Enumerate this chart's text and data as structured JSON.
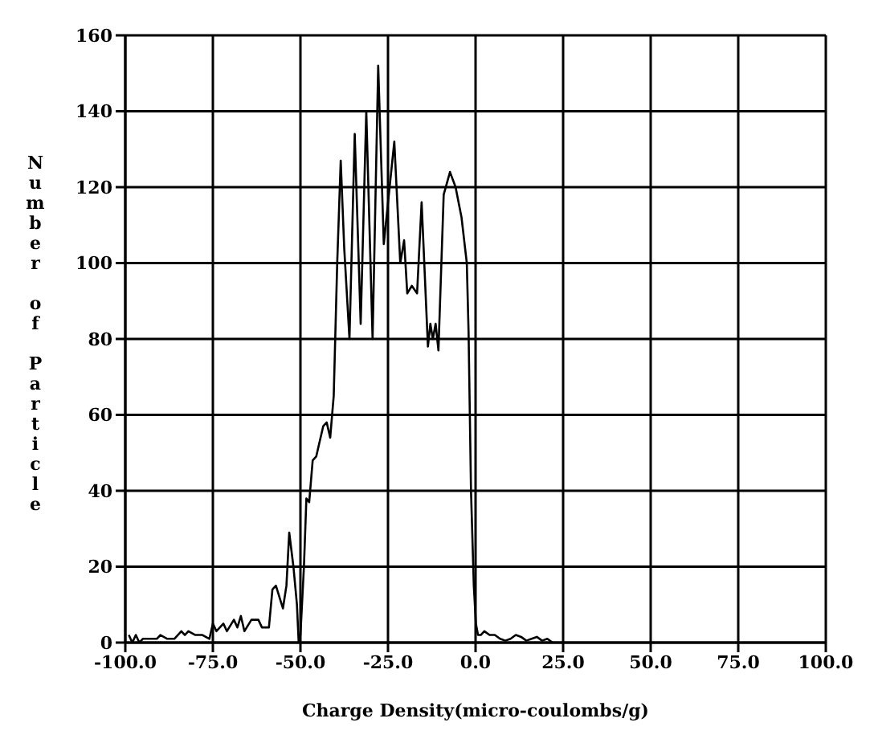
{
  "chart_data": {
    "type": "line",
    "xlabel": "Charge Density(micro-coulombs/g)",
    "ylabel": "Number of Particle",
    "x": [
      -99,
      -98,
      -97,
      -96,
      -95,
      -93,
      -91,
      -90,
      -88,
      -86,
      -84,
      -83,
      -82,
      -80,
      -78,
      -76,
      -75,
      -74,
      -72,
      -71,
      -69,
      -68,
      -67,
      -66,
      -64,
      -62,
      -61,
      -59,
      -58,
      -57,
      -56,
      -55,
      -54,
      -53.2,
      -52,
      -51,
      -50.5,
      -50,
      -49,
      -48.3,
      -47.5,
      -46.5,
      -45.5,
      -44.5,
      -43.5,
      -42.5,
      -41.5,
      -40.5,
      -39.5,
      -38.5,
      -37.5,
      -36,
      -34.5,
      -32.8,
      -31.2,
      -29.4,
      -27.8,
      -26.2,
      -25.1,
      -23.2,
      -21.5,
      -20.4,
      -19.5,
      -18.2,
      -16.7,
      -15.4,
      -13.6,
      -12.9,
      -12.2,
      -11.4,
      -10.6,
      -9.1,
      -7.3,
      -5.7,
      -4,
      -2.5,
      -2,
      -1.3,
      -0.5,
      0.1,
      0.7,
      1.5,
      2.5,
      4,
      5.5,
      7,
      8.5,
      10,
      11.5,
      13,
      14.5,
      16,
      17.5,
      19,
      20.5,
      22
    ],
    "series": [
      {
        "color": "#000000",
        "values": [
          2,
          0,
          2,
          0,
          1,
          1,
          1,
          2,
          1,
          1,
          3,
          2,
          3,
          2,
          2,
          1,
          5,
          3,
          5,
          3,
          6,
          4,
          7,
          3,
          6,
          6,
          4,
          4,
          14,
          15,
          12,
          9,
          15,
          29,
          20,
          10,
          0,
          2,
          20,
          38,
          37,
          48,
          49,
          53,
          57,
          58,
          54,
          65,
          100,
          127,
          104,
          80,
          134,
          84,
          140,
          80,
          152,
          105,
          115,
          132,
          100,
          106,
          92,
          94,
          92,
          116,
          78,
          84,
          80,
          84,
          77,
          118,
          124,
          120,
          112,
          100,
          82,
          40,
          15,
          5,
          2,
          2,
          3,
          2,
          2,
          1,
          0.5,
          1,
          2,
          1.5,
          0.5,
          1,
          1.5,
          0.5,
          1,
          0
        ]
      }
    ],
    "xlim": [
      -100,
      100
    ],
    "xticks": [
      {
        "value": -100,
        "label": "-100.0"
      },
      {
        "value": -75,
        "label": "-75.0"
      },
      {
        "value": -50,
        "label": "-50.0"
      },
      {
        "value": -25,
        "label": "-25.0"
      },
      {
        "value": 0,
        "label": "0.0"
      },
      {
        "value": 25,
        "label": "25.0"
      },
      {
        "value": 50,
        "label": "50.0"
      },
      {
        "value": 75,
        "label": "75.0"
      },
      {
        "value": 100,
        "label": "100.0"
      }
    ],
    "ylim": [
      0,
      160
    ],
    "yticks": [
      0,
      20,
      40,
      60,
      80,
      100,
      120,
      140,
      160
    ],
    "grid": true,
    "marker": "none",
    "line_style": "solid"
  }
}
